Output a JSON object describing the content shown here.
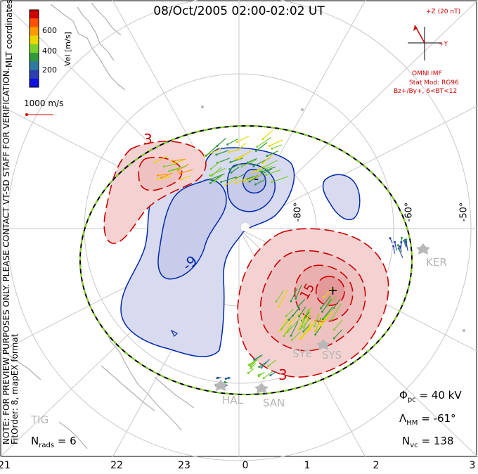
{
  "title": "08/Oct/2005 02:00-02:02 UT",
  "colorbar": {
    "axis_label": "Vel [m/s]",
    "ticks": [
      "600",
      "400",
      "200"
    ],
    "colors": [
      "#d00000",
      "#ff5000",
      "#ff9900",
      "#e8d800",
      "#7cd02c",
      "#2e9a3c",
      "#2f7aa0",
      "#2a3fb0",
      "#1010e0"
    ]
  },
  "coordinates_label": "MLT coordinates",
  "scale_vector_label": "1000 m/s",
  "imf": {
    "z_label": "+Z (20 nT)",
    "y_label": "+Y",
    "model_title": "OMNI IMF",
    "model_line1": "Stat Mod: RG96",
    "model_line2": "Bz+/By+, 6<BT<12"
  },
  "left_notes": {
    "note": "NOTE: FOR PREVIEW PURPOSES ONLY. PLEASE CONTACT VT-SD STAFF FOR VERIFICATION.",
    "fit": "FitOrder: 8, mapEX format"
  },
  "stats": {
    "phi_pc_sym": "Φ",
    "phi_pc_sub": "pc",
    "phi_pc_val": "= 40 kV",
    "lambda_sym": "Λ",
    "lambda_sub": "HM",
    "lambda_val": "= -61°",
    "nvc_sym": "N",
    "nvc_sub": "vc",
    "nvc_val": "= 138",
    "nrads_sym": "N",
    "nrads_sub": "rads",
    "nrads_val": "= 6"
  },
  "mlt_ticks": [
    "21",
    "22",
    "23",
    "0",
    "1",
    "2",
    "3"
  ],
  "lat_labels": [
    "-80°",
    "-60°",
    "-50°"
  ],
  "contour_labels": [
    "3",
    "-",
    "-9",
    "+",
    "15",
    "3"
  ],
  "stations": [
    "KER",
    "SYE",
    "SYS",
    "HAL",
    "SAN",
    "TIG"
  ],
  "colors": {
    "positive": "#cc0000",
    "negative": "#002aa8",
    "positive_fill": "#f4d2d2",
    "negative_fill": "#d8daf0",
    "hmb": "#7ed321",
    "grid": "#c8c8c8",
    "coast": "#b0b0b0"
  }
}
